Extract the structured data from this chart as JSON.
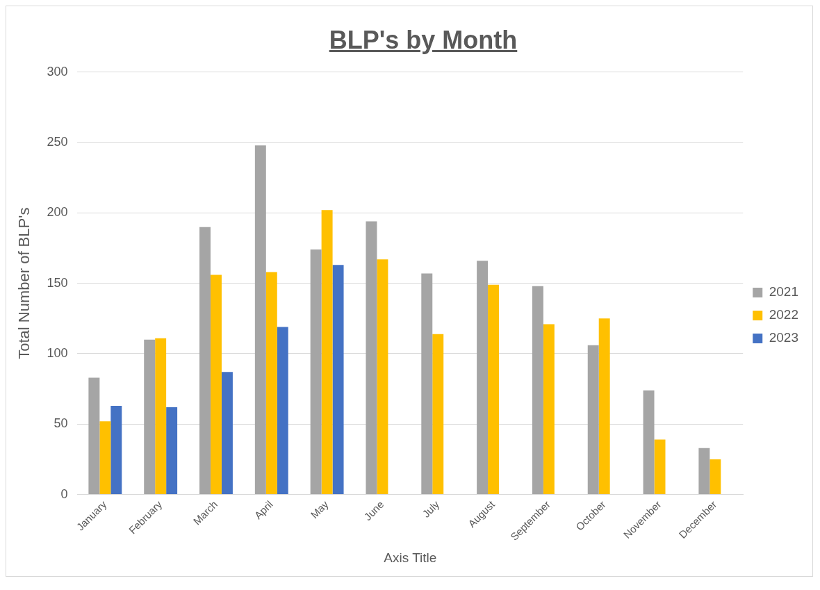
{
  "chart_data": {
    "type": "bar",
    "title": "BLP's by Month",
    "xlabel": "Axis Title",
    "ylabel": "Total Number of BLP's",
    "categories": [
      "January",
      "February",
      "March",
      "April",
      "May",
      "June",
      "July",
      "August",
      "September",
      "October",
      "November",
      "December"
    ],
    "series": [
      {
        "name": "2021",
        "color": "#a5a5a5",
        "values": [
          83,
          110,
          190,
          248,
          174,
          194,
          157,
          166,
          148,
          106,
          74,
          33
        ]
      },
      {
        "name": "2022",
        "color": "#ffc000",
        "values": [
          52,
          111,
          156,
          158,
          202,
          167,
          114,
          149,
          121,
          125,
          39,
          25
        ]
      },
      {
        "name": "2023",
        "color": "#4472c4",
        "values": [
          63,
          62,
          87,
          119,
          163,
          null,
          null,
          null,
          null,
          null,
          null,
          null
        ]
      }
    ],
    "ylim": [
      0,
      300
    ],
    "yticks": [
      0,
      50,
      100,
      150,
      200,
      250,
      300
    ],
    "grid": "y",
    "legend": "right"
  }
}
